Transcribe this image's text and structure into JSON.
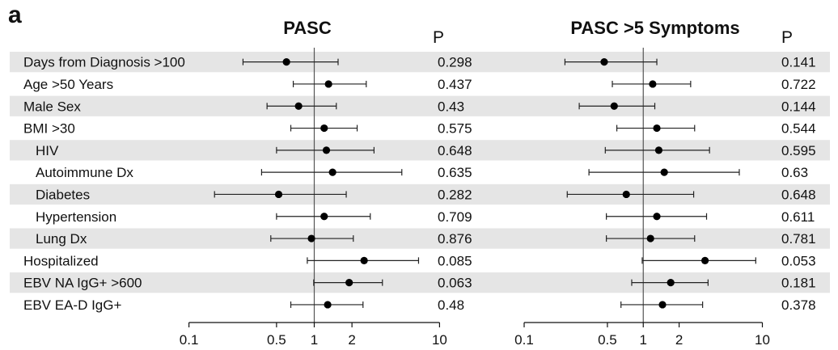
{
  "figure": {
    "panel_label": "a",
    "p_header": "P"
  },
  "chart_data": [
    {
      "type": "forest",
      "title": "PASC",
      "xscale": "log",
      "xlim": [
        0.1,
        10
      ],
      "xticks": [
        0.1,
        0.5,
        1,
        2,
        10
      ],
      "xtick_labels": [
        "0.1",
        "0.5",
        "1",
        "2",
        "10"
      ],
      "reference_line": 1,
      "rows": [
        {
          "label": "Days from Diagnosis >100",
          "indent": false,
          "shaded": true,
          "or": 0.6,
          "lo": 0.27,
          "hi": 1.55,
          "p": "0.298"
        },
        {
          "label": "Age >50 Years",
          "indent": false,
          "shaded": false,
          "or": 1.3,
          "lo": 0.68,
          "hi": 2.6,
          "p": "0.437"
        },
        {
          "label": "Male Sex",
          "indent": false,
          "shaded": true,
          "or": 0.75,
          "lo": 0.42,
          "hi": 1.5,
          "p": "0.43"
        },
        {
          "label": "BMI >30",
          "indent": false,
          "shaded": false,
          "or": 1.2,
          "lo": 0.65,
          "hi": 2.2,
          "p": "0.575"
        },
        {
          "label": "HIV",
          "indent": true,
          "shaded": true,
          "or": 1.25,
          "lo": 0.5,
          "hi": 3.0,
          "p": "0.648"
        },
        {
          "label": "Autoimmune Dx",
          "indent": true,
          "shaded": false,
          "or": 1.4,
          "lo": 0.38,
          "hi": 5.0,
          "p": "0.635"
        },
        {
          "label": "Diabetes",
          "indent": true,
          "shaded": true,
          "or": 0.52,
          "lo": 0.16,
          "hi": 1.8,
          "p": "0.282"
        },
        {
          "label": "Hypertension",
          "indent": true,
          "shaded": false,
          "or": 1.2,
          "lo": 0.5,
          "hi": 2.8,
          "p": "0.709"
        },
        {
          "label": "Lung Dx",
          "indent": true,
          "shaded": true,
          "or": 0.95,
          "lo": 0.45,
          "hi": 2.05,
          "p": "0.876"
        },
        {
          "label": "Hospitalized",
          "indent": false,
          "shaded": false,
          "or": 2.5,
          "lo": 0.88,
          "hi": 6.8,
          "p": "0.085"
        },
        {
          "label": "EBV NA IgG+ >600",
          "indent": false,
          "shaded": true,
          "or": 1.9,
          "lo": 0.99,
          "hi": 3.5,
          "p": "0.063"
        },
        {
          "label": "EBV EA-D IgG+",
          "indent": false,
          "shaded": false,
          "or": 1.28,
          "lo": 0.65,
          "hi": 2.45,
          "p": "0.48"
        }
      ]
    },
    {
      "type": "forest",
      "title": "PASC >5 Symptoms",
      "xscale": "log",
      "xlim": [
        0.1,
        10
      ],
      "xticks": [
        0.1,
        0.5,
        1,
        2,
        10
      ],
      "xtick_labels": [
        "0.1",
        "0.5",
        "1",
        "2",
        "10"
      ],
      "reference_line": 1,
      "rows": [
        {
          "label": "Days from Diagnosis >100",
          "or": 0.47,
          "lo": 0.22,
          "hi": 1.3,
          "p": "0.141"
        },
        {
          "label": "Age >50 Years",
          "or": 1.2,
          "lo": 0.55,
          "hi": 2.5,
          "p": "0.722"
        },
        {
          "label": "Male Sex",
          "or": 0.57,
          "lo": 0.29,
          "hi": 1.25,
          "p": "0.144"
        },
        {
          "label": "BMI >30",
          "or": 1.3,
          "lo": 0.6,
          "hi": 2.7,
          "p": "0.544"
        },
        {
          "label": "HIV",
          "or": 1.35,
          "lo": 0.48,
          "hi": 3.6,
          "p": "0.595"
        },
        {
          "label": "Autoimmune Dx",
          "or": 1.5,
          "lo": 0.35,
          "hi": 6.4,
          "p": "0.63"
        },
        {
          "label": "Diabetes",
          "or": 0.72,
          "lo": 0.23,
          "hi": 2.65,
          "p": "0.648"
        },
        {
          "label": "Hypertension",
          "or": 1.3,
          "lo": 0.49,
          "hi": 3.4,
          "p": "0.611"
        },
        {
          "label": "Lung Dx",
          "or": 1.15,
          "lo": 0.49,
          "hi": 2.7,
          "p": "0.781"
        },
        {
          "label": "Hospitalized",
          "or": 3.3,
          "lo": 0.98,
          "hi": 8.8,
          "p": "0.053"
        },
        {
          "label": "EBV NA IgG+ >600",
          "or": 1.7,
          "lo": 0.8,
          "hi": 3.5,
          "p": "0.181"
        },
        {
          "label": "EBV EA-D IgG+",
          "or": 1.45,
          "lo": 0.65,
          "hi": 3.15,
          "p": "0.378"
        }
      ]
    }
  ]
}
